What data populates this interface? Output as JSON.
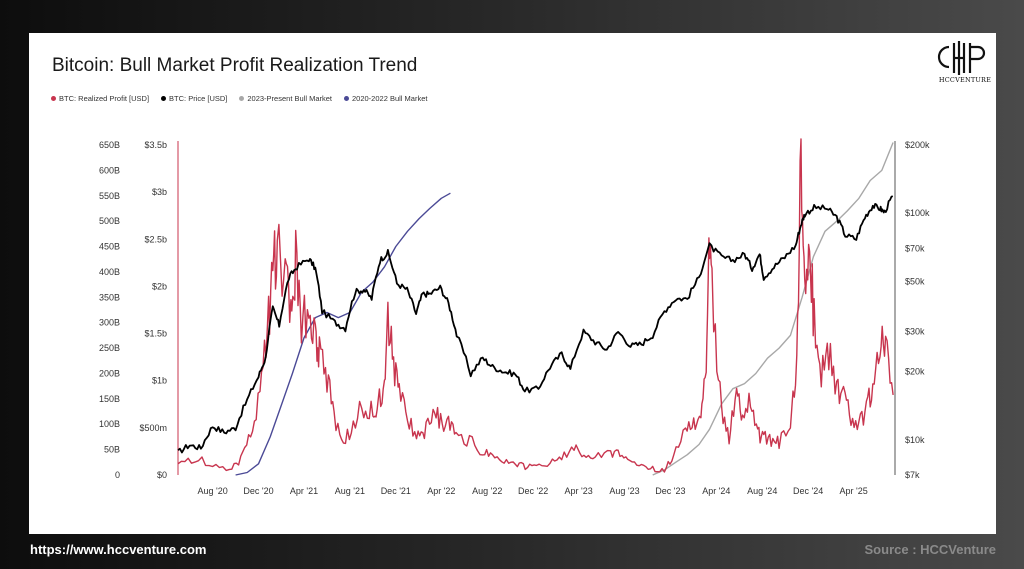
{
  "footer": {
    "website": "https://www.hccventure.com",
    "source": "Source : HCCVenture"
  },
  "logo": {
    "text": "HCCVENTURE"
  },
  "chart_data": {
    "type": "line",
    "title": "Bitcoin: Bull Market Profit Realization Trend",
    "legend_placement": "top-left",
    "grid": false,
    "legend": [
      {
        "name": "BTC: Realized Profit [USD]",
        "color": "#c8354e"
      },
      {
        "name": "BTC: Price [USD]",
        "color": "#000000"
      },
      {
        "name": "2023-Present Bull Market",
        "color": "#a8a8a8"
      },
      {
        "name": "2020-2022 Bull Market",
        "color": "#4b4a96"
      }
    ],
    "x_ticks": [
      "Aug '20",
      "Dec '20",
      "Apr '21",
      "Aug '21",
      "Dec '21",
      "Apr '22",
      "Aug '22",
      "Dec '22",
      "Apr '23",
      "Aug '23",
      "Dec '23",
      "Apr '24",
      "Aug '24",
      "Dec '24",
      "Apr '25"
    ],
    "x_range": [
      "2020-05-01",
      "2025-07-20"
    ],
    "left_axis_outer": {
      "ticks": [
        "0",
        "50B",
        "100B",
        "150B",
        "200B",
        "250B",
        "300B",
        "350B",
        "400B",
        "450B",
        "500B",
        "550B",
        "600B",
        "650B"
      ],
      "ylim": [
        0,
        650
      ]
    },
    "left_axis_inner": {
      "ticks": [
        "$0",
        "$500m",
        "$1b",
        "$1.5b",
        "$2b",
        "$2.5b",
        "$3b",
        "$3.5b"
      ],
      "ylim": [
        0,
        3.5
      ]
    },
    "right_axis": {
      "scale": "log",
      "ticks": [
        "$7k",
        "$10k",
        "$20k",
        "$30k",
        "$50k",
        "$70k",
        "$100k",
        "$200k"
      ],
      "ylim": [
        7000,
        200000
      ]
    },
    "series": [
      {
        "name": "BTC: Realized Profit [USD]",
        "axis": "left_inner",
        "color": "#c8354e",
        "x": [
          "2020-05-01",
          "2020-06-15",
          "2020-08-01",
          "2020-09-15",
          "2020-10-15",
          "2020-11-10",
          "2020-12-05",
          "2020-12-25",
          "2021-01-08",
          "2021-01-20",
          "2021-02-10",
          "2021-02-25",
          "2021-03-10",
          "2021-03-25",
          "2021-04-14",
          "2021-05-01",
          "2021-05-12",
          "2021-06-01",
          "2021-06-20",
          "2021-07-15",
          "2021-08-10",
          "2021-09-07",
          "2021-10-01",
          "2021-10-15",
          "2021-11-01",
          "2021-11-10",
          "2021-11-25",
          "2021-12-10",
          "2022-01-01",
          "2022-01-25",
          "2022-02-15",
          "2022-03-10",
          "2022-03-30",
          "2022-04-20",
          "2022-05-10",
          "2022-06-15",
          "2022-07-20",
          "2022-08-15",
          "2022-09-15",
          "2022-10-15",
          "2022-11-10",
          "2022-12-10",
          "2023-01-15",
          "2023-02-15",
          "2023-03-20",
          "2023-04-15",
          "2023-05-15",
          "2023-06-25",
          "2023-07-20",
          "2023-08-15",
          "2023-09-15",
          "2023-10-15",
          "2023-11-15",
          "2023-12-10",
          "2024-01-10",
          "2024-02-01",
          "2024-02-20",
          "2024-03-05",
          "2024-03-14",
          "2024-03-25",
          "2024-04-15",
          "2024-05-05",
          "2024-05-25",
          "2024-06-10",
          "2024-07-01",
          "2024-07-20",
          "2024-08-05",
          "2024-08-25",
          "2024-09-15",
          "2024-10-15",
          "2024-11-01",
          "2024-11-12",
          "2024-11-22",
          "2024-12-05",
          "2024-12-17",
          "2025-01-05",
          "2025-01-25",
          "2025-02-15",
          "2025-03-05",
          "2025-03-25",
          "2025-04-15",
          "2025-05-05",
          "2025-05-22",
          "2025-06-10",
          "2025-06-25",
          "2025-07-15"
        ],
        "values": [
          0.1,
          0.18,
          0.1,
          0.06,
          0.18,
          0.45,
          0.9,
          1.5,
          2.1,
          2.35,
          2.0,
          1.7,
          2.3,
          1.6,
          1.7,
          1.5,
          1.35,
          1.0,
          0.6,
          0.3,
          0.55,
          0.75,
          0.65,
          0.75,
          0.9,
          1.65,
          1.2,
          0.85,
          0.6,
          0.4,
          0.45,
          0.65,
          0.6,
          0.55,
          0.4,
          0.35,
          0.25,
          0.2,
          0.15,
          0.12,
          0.1,
          0.08,
          0.12,
          0.18,
          0.28,
          0.2,
          0.18,
          0.25,
          0.22,
          0.15,
          0.1,
          0.06,
          0.05,
          0.22,
          0.45,
          0.55,
          0.7,
          0.95,
          2.55,
          1.6,
          0.7,
          0.4,
          0.9,
          0.6,
          0.8,
          0.45,
          0.4,
          0.35,
          0.35,
          0.55,
          1.2,
          3.45,
          2.2,
          2.4,
          1.6,
          1.0,
          1.35,
          0.9,
          0.8,
          0.6,
          0.55,
          0.7,
          0.95,
          1.4,
          1.3,
          0.85
        ]
      },
      {
        "name": "BTC: Price [USD]",
        "axis": "right",
        "color": "#000000",
        "x": [
          "2020-05-01",
          "2020-06-01",
          "2020-07-01",
          "2020-08-01",
          "2020-09-01",
          "2020-10-01",
          "2020-11-01",
          "2020-12-01",
          "2020-12-20",
          "2021-01-08",
          "2021-01-25",
          "2021-02-20",
          "2021-03-13",
          "2021-04-14",
          "2021-05-01",
          "2021-05-19",
          "2021-06-22",
          "2021-07-20",
          "2021-08-15",
          "2021-09-07",
          "2021-09-28",
          "2021-10-20",
          "2021-11-10",
          "2021-12-04",
          "2021-12-31",
          "2022-01-24",
          "2022-02-10",
          "2022-03-01",
          "2022-03-29",
          "2022-04-20",
          "2022-05-12",
          "2022-06-18",
          "2022-07-20",
          "2022-08-15",
          "2022-09-15",
          "2022-10-15",
          "2022-11-09",
          "2022-12-15",
          "2023-01-15",
          "2023-02-15",
          "2023-03-10",
          "2023-04-14",
          "2023-05-15",
          "2023-06-15",
          "2023-07-15",
          "2023-08-17",
          "2023-09-15",
          "2023-10-15",
          "2023-11-15",
          "2023-12-15",
          "2024-01-15",
          "2024-02-15",
          "2024-03-14",
          "2024-04-15",
          "2024-05-15",
          "2024-06-15",
          "2024-07-05",
          "2024-07-25",
          "2024-08-05",
          "2024-09-01",
          "2024-09-30",
          "2024-10-29",
          "2024-11-12",
          "2024-11-22",
          "2024-12-17",
          "2025-01-20",
          "2025-02-15",
          "2025-03-10",
          "2025-04-08",
          "2025-05-01",
          "2025-05-22",
          "2025-06-10",
          "2025-06-22",
          "2025-07-14"
        ],
        "values": [
          8800,
          9500,
          9200,
          11500,
          10800,
          11300,
          15000,
          19000,
          23000,
          38000,
          32000,
          52000,
          58000,
          63000,
          57000,
          37000,
          33000,
          31000,
          45000,
          46000,
          42000,
          62000,
          67000,
          49000,
          46000,
          36000,
          44000,
          44000,
          47000,
          40000,
          29000,
          19500,
          23000,
          21000,
          20000,
          19500,
          16500,
          16800,
          21000,
          24000,
          20500,
          30000,
          27000,
          25000,
          30000,
          26000,
          26500,
          29000,
          37000,
          42000,
          42000,
          52000,
          72000,
          64000,
          62000,
          66000,
          57000,
          66000,
          52000,
          58000,
          64000,
          72000,
          89000,
          99000,
          106000,
          105000,
          96000,
          80000,
          77000,
          96000,
          108000,
          105000,
          101000,
          119000
        ]
      },
      {
        "name": "2023-Present Bull Market",
        "axis": "left_outer",
        "color": "#a8a8a8",
        "x": [
          "2023-10-15",
          "2023-11-15",
          "2023-12-15",
          "2024-01-15",
          "2024-02-15",
          "2024-03-14",
          "2024-04-15",
          "2024-05-15",
          "2024-06-15",
          "2024-07-15",
          "2024-08-15",
          "2024-09-15",
          "2024-10-15",
          "2024-11-15",
          "2024-12-15",
          "2025-01-15",
          "2025-02-15",
          "2025-03-15",
          "2025-04-15",
          "2025-05-15",
          "2025-06-15",
          "2025-07-15"
        ],
        "values": [
          0,
          10,
          25,
          40,
          60,
          90,
          140,
          170,
          180,
          200,
          230,
          250,
          275,
          350,
          430,
          480,
          500,
          520,
          545,
          580,
          600,
          655
        ]
      },
      {
        "name": "2020-2022 Bull Market",
        "axis": "left_outer",
        "color": "#4b4a96",
        "x": [
          "2020-10-01",
          "2020-11-01",
          "2020-12-01",
          "2021-01-01",
          "2021-02-01",
          "2021-03-01",
          "2021-04-01",
          "2021-05-01",
          "2021-06-01",
          "2021-07-01",
          "2021-08-01",
          "2021-09-01",
          "2021-10-01",
          "2021-11-01",
          "2021-12-01",
          "2022-01-01",
          "2022-02-01",
          "2022-03-01",
          "2022-04-01",
          "2022-04-25"
        ],
        "values": [
          0,
          5,
          22,
          75,
          140,
          200,
          270,
          310,
          320,
          310,
          320,
          360,
          380,
          410,
          450,
          480,
          505,
          525,
          545,
          555
        ]
      }
    ]
  }
}
